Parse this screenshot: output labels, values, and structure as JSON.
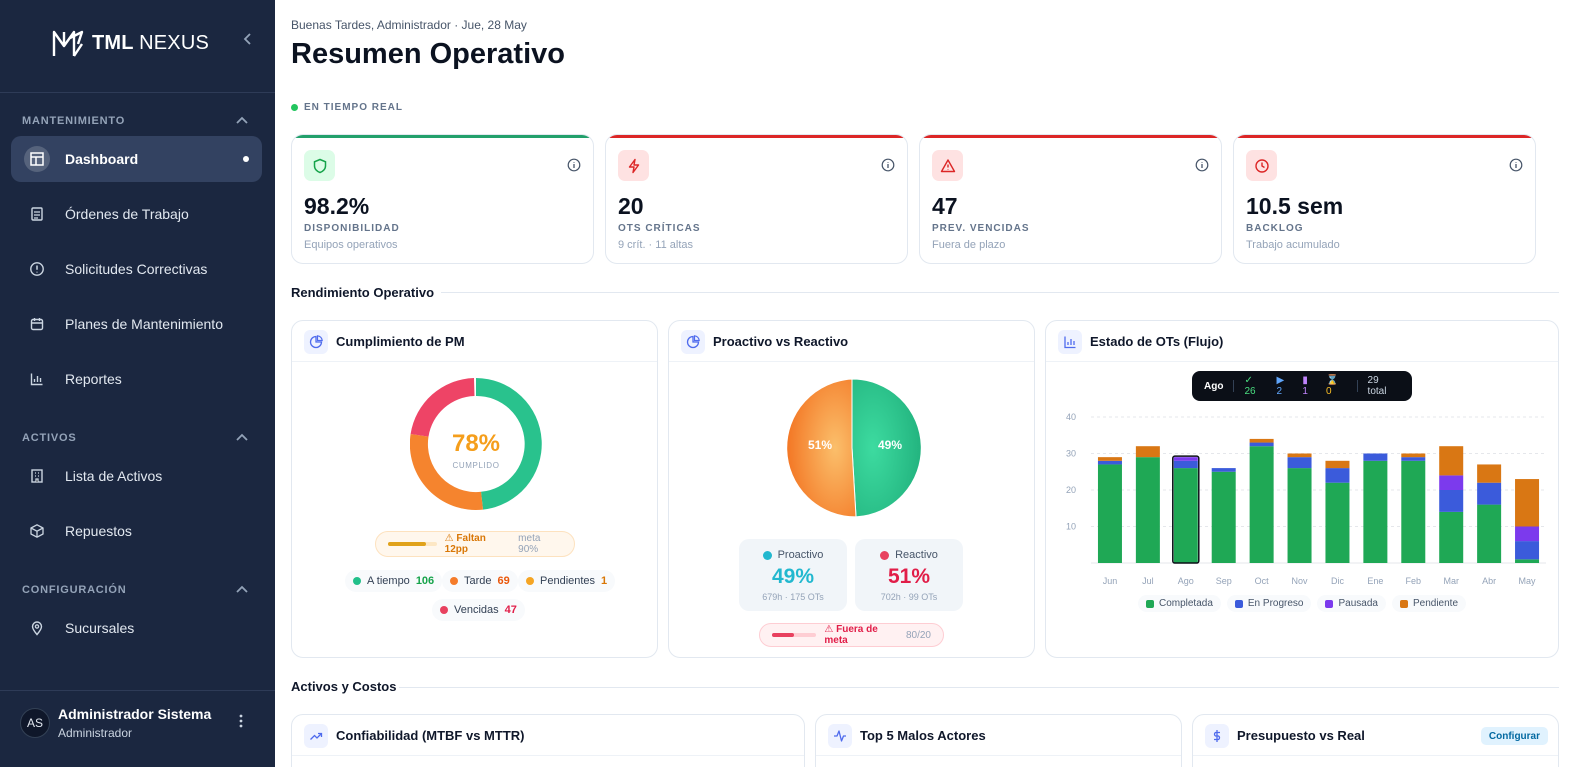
{
  "sidebar": {
    "brand_bold": "TML",
    "brand_light": "NEXUS",
    "sections": [
      {
        "label": "MANTENIMIENTO"
      },
      {
        "label": "ACTIVOS"
      },
      {
        "label": "CONFIGURACIÓN"
      }
    ],
    "items": [
      {
        "label": "Dashboard",
        "icon": "dashboard-icon",
        "active": true
      },
      {
        "label": "Órdenes de Trabajo",
        "icon": "clipboard-icon"
      },
      {
        "label": "Solicitudes Correctivas",
        "icon": "alert-circle-icon"
      },
      {
        "label": "Planes de Mantenimiento",
        "icon": "calendar-icon"
      },
      {
        "label": "Reportes",
        "icon": "bar-chart-icon"
      },
      {
        "label": "Lista de Activos",
        "icon": "building-icon"
      },
      {
        "label": "Repuestos",
        "icon": "package-icon"
      },
      {
        "label": "Sucursales",
        "icon": "map-pin-icon"
      }
    ],
    "user": {
      "initials": "AS",
      "name": "Administrador Sistema",
      "role": "Administrador"
    }
  },
  "header": {
    "greeting": "Buenas Tardes, Administrador · Jue, 28 May",
    "title": "Resumen Operativo",
    "live": "EN TIEMPO REAL"
  },
  "kpis": [
    {
      "value": "98.2%",
      "label": "DISPONIBILIDAD",
      "sub": "Equipos operativos",
      "accent": "#22a06b",
      "icon": "shield-icon"
    },
    {
      "value": "20",
      "label": "OTS CRÍTICAS",
      "sub": "9 crít. · 11 altas",
      "accent": "#dc2626",
      "icon": "lightning-icon"
    },
    {
      "value": "47",
      "label": "PREV. VENCIDAS",
      "sub": "Fuera de plazo",
      "accent": "#dc2626",
      "icon": "warning-icon"
    },
    {
      "value": "10.5 sem",
      "label": "BACKLOG",
      "sub": "Trabajo acumulado",
      "accent": "#dc2626",
      "icon": "clock-icon"
    }
  ],
  "sections": {
    "rendimiento": "Rendimiento Operativo",
    "activos": "Activos y Costos"
  },
  "pm": {
    "title": "Cumplimiento de PM",
    "center_value": "78%",
    "center_label": "CUMPLIDO",
    "gap_text": "⚠ Faltan 12pp",
    "meta_text": "meta 90%",
    "progress": 0.78,
    "legend": [
      {
        "label": "A tiempo",
        "value": "106",
        "color": "#22c08a"
      },
      {
        "label": "Tarde",
        "value": "69",
        "color": "#f57c2a"
      },
      {
        "label": "Pendientes",
        "value": "1",
        "color": "#f5a524"
      },
      {
        "label": "Vencidas",
        "value": "47",
        "color": "#e8415f"
      }
    ]
  },
  "pvr": {
    "title": "Proactivo vs Reactivo",
    "proactivo": {
      "label": "Proactivo",
      "value": "49%",
      "sub": "679h · 175 OTs",
      "slice_label": "49%",
      "color": "#22b8cf"
    },
    "reactivo": {
      "label": "Reactivo",
      "value": "51%",
      "sub": "702h · 99 OTs",
      "slice_label": "51%",
      "color": "#e11d48"
    },
    "badge_text": "⚠ Fuera de meta",
    "badge_meta": "80/20",
    "progress": 0.49
  },
  "flow": {
    "title": "Estado de OTs (Flujo)",
    "tooltip": {
      "month": "Ago",
      "done": "✓ 26",
      "progress": "▶ 2",
      "paused": "▮ 1",
      "pending": "⌛ 0",
      "total": "29 total"
    }
  },
  "chart_data": {
    "type": "bar",
    "stacked": true,
    "categories": [
      "Jun",
      "Jul",
      "Ago",
      "Sep",
      "Oct",
      "Nov",
      "Dic",
      "Ene",
      "Feb",
      "Mar",
      "Abr",
      "May"
    ],
    "series": [
      {
        "name": "Completada",
        "color": "#1fa855",
        "values": [
          27,
          29,
          26,
          25,
          32,
          26,
          22,
          28,
          28,
          14,
          16,
          1
        ]
      },
      {
        "name": "En Progreso",
        "color": "#3b5bdb",
        "values": [
          1,
          0,
          2,
          1,
          1,
          3,
          4,
          2,
          1,
          6,
          6,
          5
        ]
      },
      {
        "name": "Pausada",
        "color": "#7c3aed",
        "values": [
          0,
          0,
          1,
          0,
          0,
          0,
          0,
          0,
          0,
          4,
          0,
          4
        ]
      },
      {
        "name": "Pendiente",
        "color": "#d97714",
        "values": [
          1,
          3,
          0,
          0,
          1,
          1,
          2,
          0,
          1,
          8,
          5,
          13
        ]
      }
    ],
    "yticks": [
      "10",
      "20",
      "30",
      "40"
    ],
    "ylim": [
      0,
      40
    ],
    "grid": true,
    "legend": "bottom",
    "highlight": "Ago"
  },
  "bottom_panels": [
    {
      "title": "Confiabilidad (MTBF vs MTTR)",
      "icon": "trend-up-icon"
    },
    {
      "title": "Top 5 Malos Actores",
      "icon": "activity-icon"
    },
    {
      "title": "Presupuesto vs Real",
      "icon": "dollar-icon",
      "action": "Configurar"
    }
  ]
}
